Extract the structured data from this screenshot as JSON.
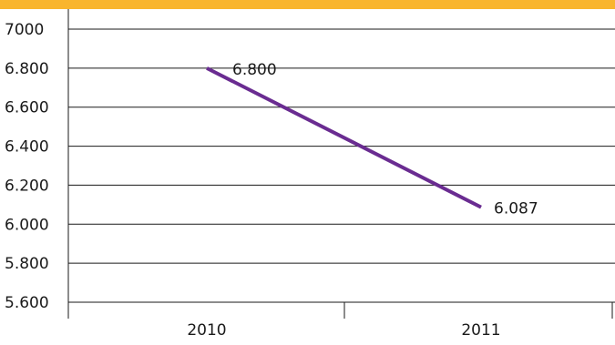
{
  "chart_data": {
    "type": "line",
    "categories": [
      "2010",
      "2011"
    ],
    "series": [
      {
        "values": [
          6800,
          6087
        ]
      }
    ],
    "data_labels": [
      "6.800",
      "6.087"
    ],
    "y_ticks": [
      5600,
      5800,
      6000,
      6200,
      6400,
      6600,
      6800,
      7000
    ],
    "y_tick_labels": [
      "5.600",
      "5.800",
      "6.000",
      "6.200",
      "6.400",
      "6.600",
      "6.800",
      "7000"
    ],
    "ylim": [
      5600,
      7000
    ],
    "grid": true,
    "title": "",
    "xlabel": "",
    "ylabel": ""
  },
  "colors": {
    "top_band": "#f9b52e",
    "line": "#6a2c91",
    "grid": "#1a1a1a"
  }
}
